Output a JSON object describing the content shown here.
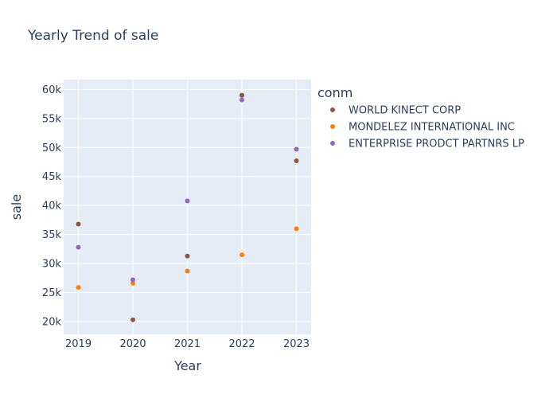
{
  "chart_data": {
    "type": "scatter",
    "title": "Yearly Trend of sale",
    "xlabel": "Year",
    "ylabel": "sale",
    "legend_title": "conm",
    "legend_position": "right",
    "x_ticks": [
      "2019",
      "2020",
      "2021",
      "2022",
      "2023"
    ],
    "y_ticks": [
      "20k",
      "25k",
      "30k",
      "35k",
      "40k",
      "45k",
      "50k",
      "55k",
      "60k"
    ],
    "y_tick_values": [
      20000,
      25000,
      30000,
      35000,
      40000,
      45000,
      50000,
      55000,
      60000
    ],
    "xlim": [
      2018.73,
      2023.27
    ],
    "ylim": [
      17800,
      61700
    ],
    "grid": true,
    "series": [
      {
        "name": "WORLD KINECT CORP",
        "color": "#8c564b",
        "x": [
          2019,
          2020,
          2021,
          2022,
          2023
        ],
        "y": [
          36800,
          20300,
          31300,
          59000,
          47700
        ]
      },
      {
        "name": "MONDELEZ INTERNATIONAL INC",
        "color": "#ff7f0e",
        "x": [
          2019,
          2020,
          2021,
          2022,
          2023
        ],
        "y": [
          25900,
          26600,
          28700,
          31500,
          36000
        ]
      },
      {
        "name": "ENTERPRISE PRODCT PARTNRS LP",
        "color": "#9467bd",
        "x": [
          2019,
          2020,
          2021,
          2022,
          2023
        ],
        "y": [
          32800,
          27200,
          40800,
          58200,
          49700
        ]
      }
    ]
  }
}
